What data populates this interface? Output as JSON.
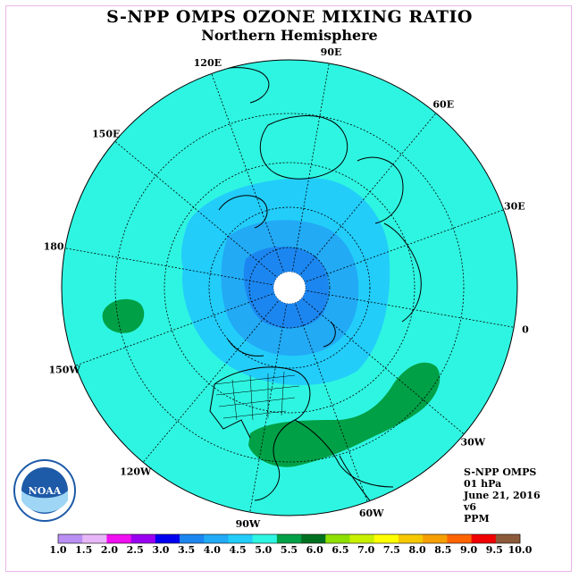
{
  "title": "S-NPP OMPS OZONE MIXING RATIO",
  "subtitle": "Northern Hemisphere",
  "longitude_labels": [
    "90E",
    "60E",
    "30E",
    "0",
    "30W",
    "60W",
    "90W",
    "120W",
    "150W",
    "180",
    "150E",
    "120E"
  ],
  "info": {
    "product": "S-NPP OMPS",
    "level": "01 hPa",
    "date": "June 21, 2016",
    "version": "v6",
    "units": "PPM"
  },
  "logo": {
    "text": "NOAA"
  },
  "colorbar": {
    "ticks": [
      "1.0",
      "1.5",
      "2.0",
      "2.5",
      "3.0",
      "3.5",
      "4.0",
      "4.5",
      "5.0",
      "5.5",
      "6.0",
      "6.5",
      "7.0",
      "7.5",
      "8.0",
      "8.5",
      "9.0",
      "9.5",
      "10.0"
    ],
    "colors": [
      "#b98ff3",
      "#e7b6f8",
      "#f00ff0",
      "#9a00f0",
      "#0000f0",
      "#1c86f0",
      "#22aaf5",
      "#22cdfa",
      "#2ef5e1",
      "#00a046",
      "#007020",
      "#8ee000",
      "#c8f000",
      "#ffff00",
      "#f5c800",
      "#f5a000",
      "#ff6400",
      "#f00000",
      "#8b5a3a"
    ]
  },
  "map_colors": {
    "background": "#2ef5e1",
    "contour_4_5": "#22cdfa",
    "contour_4_0": "#22aaf5",
    "contour_3_5": "#1c86f0",
    "contour_5_5": "#00a046"
  }
}
